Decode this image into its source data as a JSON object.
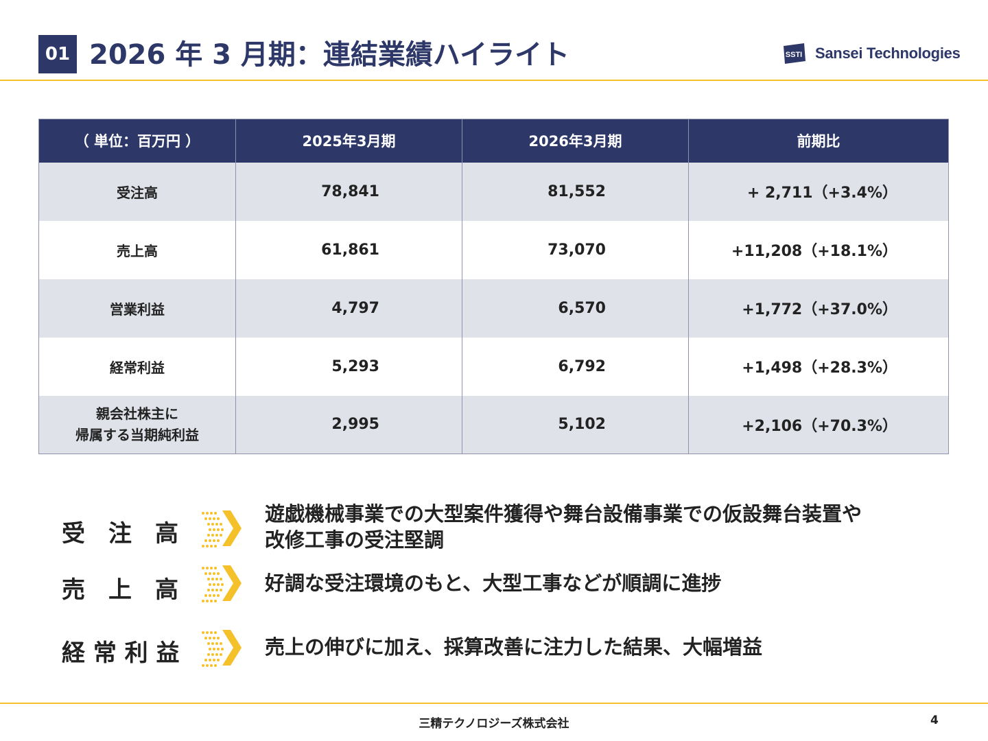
{
  "header": {
    "section_number": "01",
    "title": "2026 年 3 月期：連結業績ハイライト",
    "logo_text": "Sansei Technologies",
    "logo_mark_text": "SSTI"
  },
  "table": {
    "headers": [
      "（ 単位：百万円 ）",
      "2025年3月期",
      "2026年3月期",
      "前期比"
    ],
    "rows": [
      {
        "label": "受注高",
        "fy2025": "78,841",
        "fy2026": "81,552",
        "change": "+ 2,711（+3.4%）"
      },
      {
        "label": "売上高",
        "fy2025": "61,861",
        "fy2026": "73,070",
        "change": "+11,208（+18.1%）"
      },
      {
        "label": "営業利益",
        "fy2025": "4,797",
        "fy2026": "6,570",
        "change": "+1,772（+37.0%）"
      },
      {
        "label": "経常利益",
        "fy2025": "5,293",
        "fy2026": "6,792",
        "change": "+1,498（+28.3%）"
      },
      {
        "label_line1": "親会社株主に",
        "label_line2": "帰属する当期純利益",
        "fy2025": "2,995",
        "fy2026": "5,102",
        "change": "+2,106（+70.3%）"
      }
    ]
  },
  "highlights": [
    {
      "label": "受　注　高",
      "text_line1": "遊戯機械事業での大型案件獲得や舞台設備事業での仮設舞台装置や",
      "text_line2": "改修工事の受注堅調"
    },
    {
      "label": "売　上　高",
      "text_line1": "好調な受注環境のもと、大型工事などが順調に進捗"
    },
    {
      "label": "経 常 利 益",
      "text_line1": "売上の伸びに加え、採算改善に注力した結果、大幅増益"
    }
  ],
  "footer": {
    "company": "三精テクノロジーズ株式会社",
    "page_number": "4"
  },
  "colors": {
    "navy": "#2d3768",
    "accent_yellow": "#f5c12b",
    "row_shade": "#dfe2e9"
  }
}
